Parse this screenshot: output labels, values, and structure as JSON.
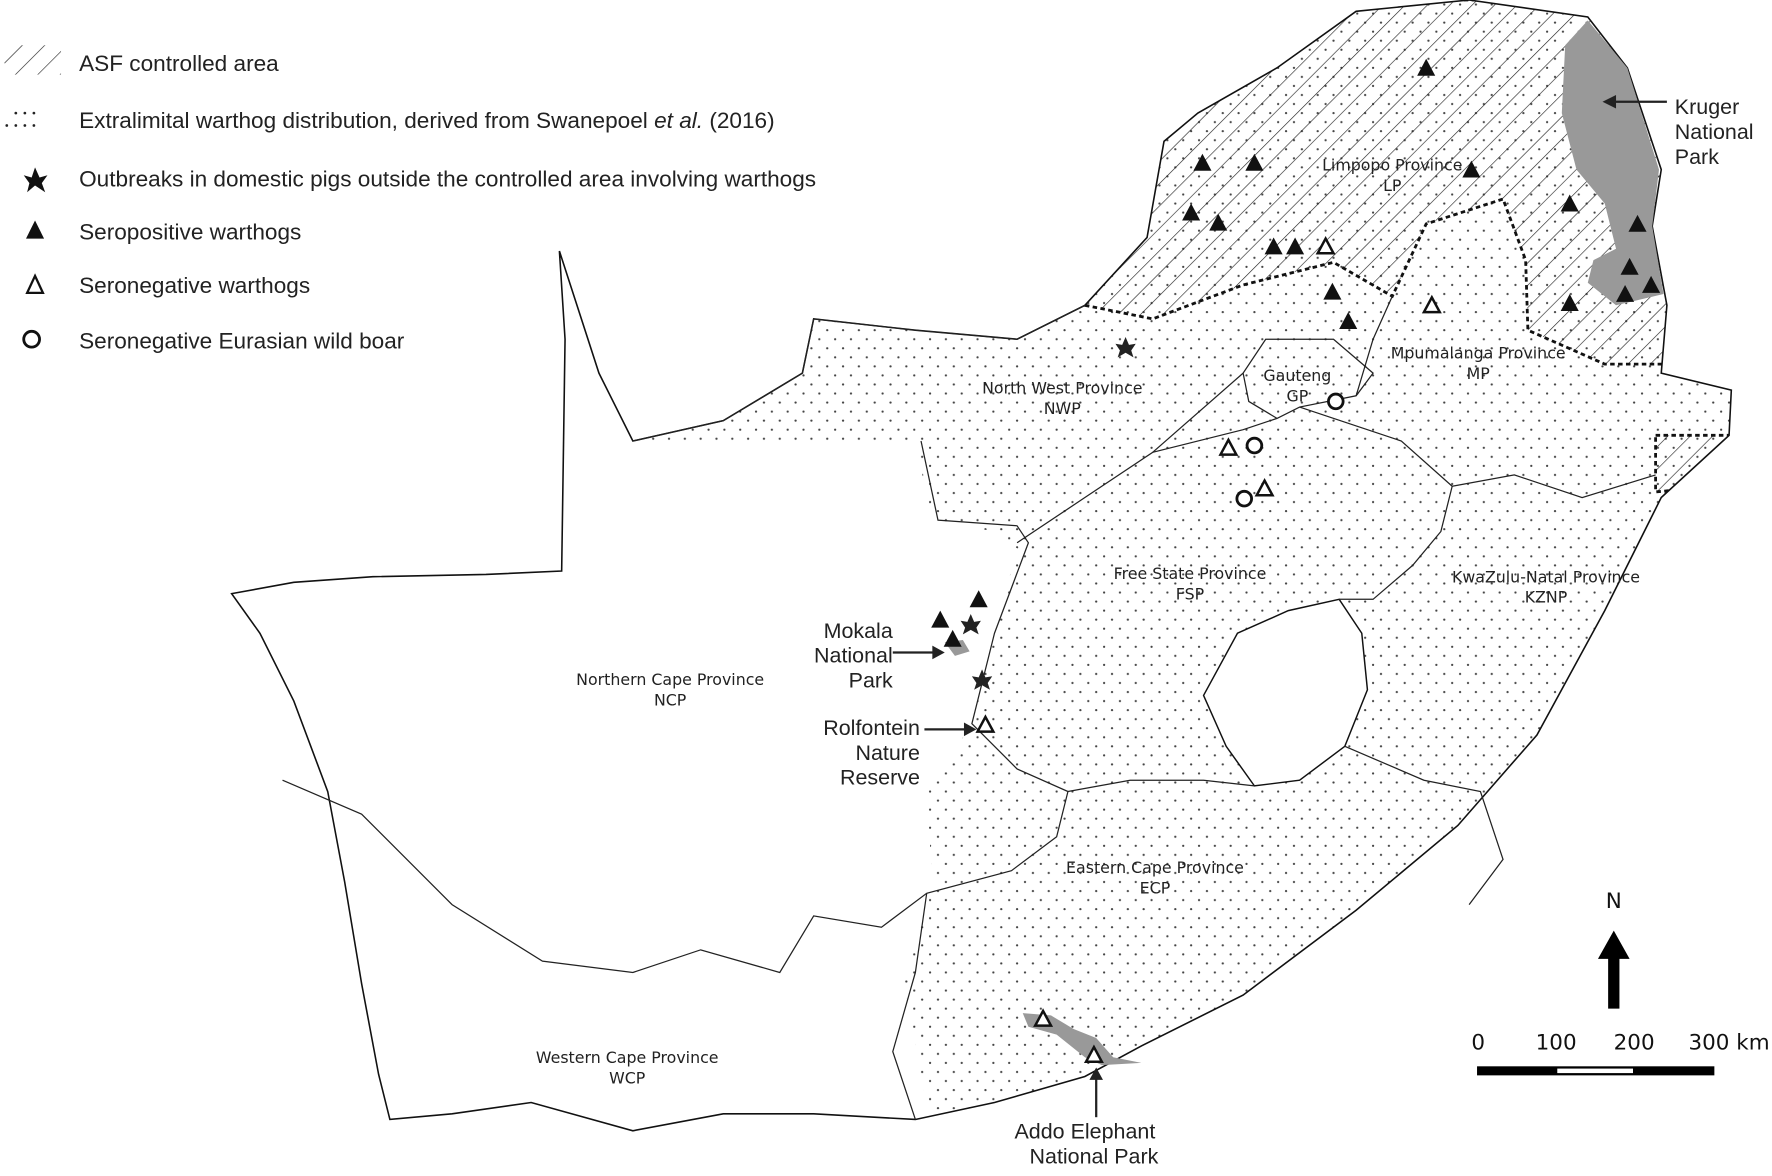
{
  "legend": {
    "items": [
      {
        "symbol": "hatch",
        "label": "ASF controlled area"
      },
      {
        "symbol": "dots",
        "label_pre": "Extralimital warthog distribution, derived from Swanepoel ",
        "label_italic": "et al.",
        "label_post": " (2016)"
      },
      {
        "symbol": "star",
        "label": "Outbreaks in domestic pigs outside the controlled area involving warthogs"
      },
      {
        "symbol": "filled-triangle",
        "label": "Seropositive warthogs"
      },
      {
        "symbol": "open-triangle",
        "label": "Seronegative warthogs"
      },
      {
        "symbol": "open-circle",
        "label": "Seronegative Eurasian wild boar"
      }
    ]
  },
  "provinces": [
    {
      "name": "Limpopo Province",
      "abbr": "LP"
    },
    {
      "name": "North West Province",
      "abbr": "NWP"
    },
    {
      "name": "Gauteng",
      "abbr": "GP"
    },
    {
      "name": "Mpumalanga Province",
      "abbr": "MP"
    },
    {
      "name": "Free State Province",
      "abbr": "FSP"
    },
    {
      "name": "KwaZulu-Natal Province",
      "abbr": "KZNP"
    },
    {
      "name": "Northern Cape Province",
      "abbr": "NCP"
    },
    {
      "name": "Eastern Cape Province",
      "abbr": "ECP"
    },
    {
      "name": "Western Cape Province",
      "abbr": "WCP"
    }
  ],
  "parks": {
    "kruger": [
      "Kruger",
      "National",
      "Park"
    ],
    "mokala": [
      "Mokala",
      "National",
      "Park"
    ],
    "rolfontein": [
      "Rolfontein",
      "Nature",
      "Reserve"
    ],
    "addo": [
      "Addo Elephant",
      "National Park"
    ]
  },
  "north_arrow": {
    "label": "N"
  },
  "scale_bar": {
    "labels": [
      "0",
      "100",
      "200",
      "300 km"
    ]
  },
  "colors": {
    "park_fill": "#999999",
    "ink": "#111111"
  }
}
